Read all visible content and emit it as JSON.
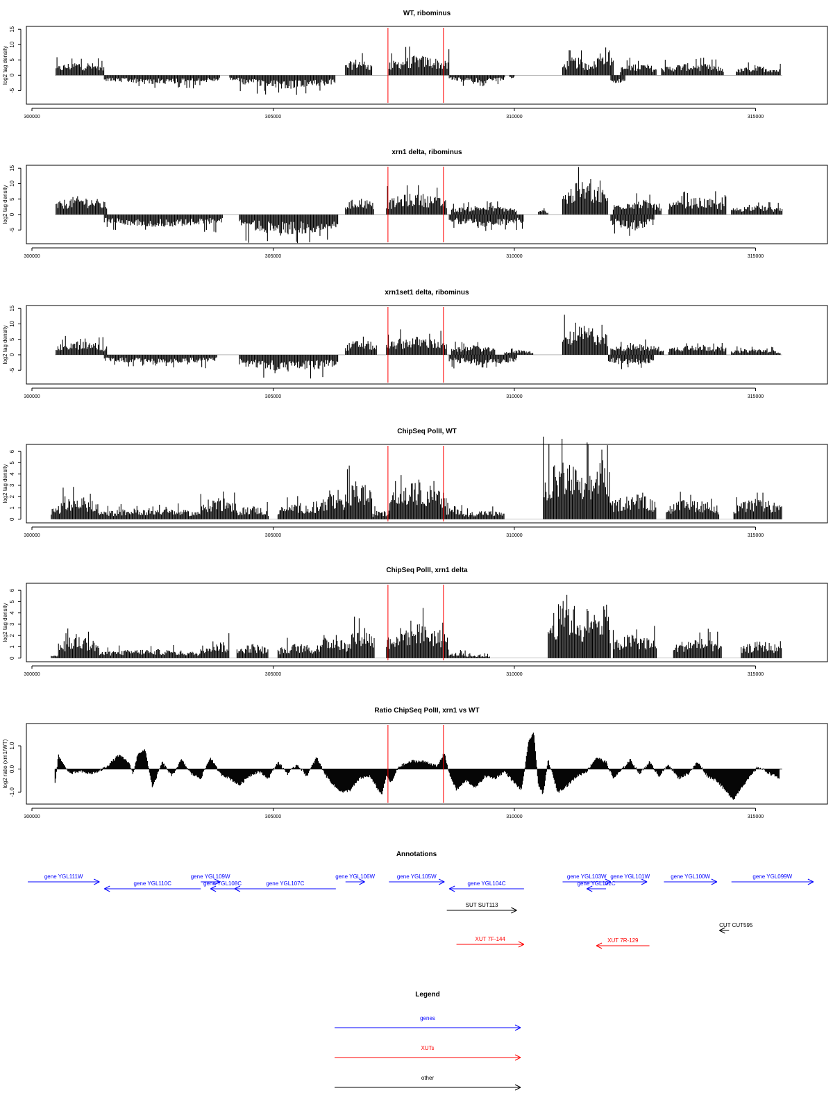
{
  "chart_data": [
    {
      "type": "bar",
      "title": "WT, ribominus",
      "ylabel": "log2 tag density",
      "ylim": [
        -9,
        15.5
      ],
      "yticks": [
        -5,
        0,
        5,
        10,
        15
      ],
      "xlim": [
        300000,
        315900
      ],
      "xticks": [
        300000,
        305000,
        310000,
        315000
      ],
      "vlines": [
        307380,
        308530
      ],
      "signal": {
        "pos": [
          [
            300500,
            301500,
            4.5
          ],
          [
            306500,
            307050,
            5.5
          ],
          [
            307400,
            308650,
            6.5
          ],
          [
            311000,
            311500,
            6
          ],
          [
            311500,
            311700,
            5.5
          ],
          [
            311700,
            312050,
            9.5
          ],
          [
            312200,
            312950,
            4
          ],
          [
            313050,
            314350,
            4
          ],
          [
            314600,
            315520,
            3
          ]
        ],
        "neg": [
          [
            301500,
            303900,
            3
          ],
          [
            304100,
            304300,
            2
          ],
          [
            304300,
            306300,
            4.5
          ],
          [
            308650,
            309800,
            2.5
          ],
          [
            309900,
            310000,
            1
          ],
          [
            312000,
            312300,
            3
          ]
        ]
      }
    },
    {
      "type": "bar",
      "title": "xrn1 delta, ribominus",
      "ylabel": "log2 tag density",
      "ylim": [
        -9,
        15.5
      ],
      "yticks": [
        -5,
        0,
        5,
        10,
        15
      ],
      "xlim": [
        300000,
        315900
      ],
      "xticks": [
        300000,
        305000,
        310000,
        315000
      ],
      "vlines": [
        307380,
        308530
      ],
      "signal": {
        "pos": [
          [
            300500,
            301550,
            6
          ],
          [
            306500,
            307100,
            5.5
          ],
          [
            307350,
            308600,
            7
          ],
          [
            308700,
            310050,
            3
          ],
          [
            310500,
            310700,
            1.5
          ],
          [
            311000,
            311950,
            11
          ],
          [
            312050,
            313050,
            5
          ],
          [
            313200,
            314400,
            5.5
          ],
          [
            314500,
            315550,
            3
          ]
        ],
        "neg": [
          [
            301500,
            303950,
            4
          ],
          [
            304300,
            306350,
            6.5
          ],
          [
            308650,
            310200,
            4
          ],
          [
            312000,
            312900,
            5
          ]
        ]
      }
    },
    {
      "type": "bar",
      "title": "xrn1set1 delta, ribominus",
      "ylabel": "log2 tag density",
      "ylim": [
        -9,
        15.5
      ],
      "yticks": [
        -5,
        0,
        5,
        10,
        15
      ],
      "xlim": [
        300000,
        315900
      ],
      "xticks": [
        300000,
        305000,
        310000,
        315000
      ],
      "vlines": [
        307380,
        308530
      ],
      "signal": {
        "pos": [
          [
            300500,
            301550,
            4.5
          ],
          [
            306500,
            307150,
            5
          ],
          [
            307350,
            308600,
            6
          ],
          [
            308700,
            309600,
            3
          ],
          [
            309800,
            310400,
            1.5
          ],
          [
            311000,
            311950,
            9.5
          ],
          [
            312000,
            313100,
            3.5
          ],
          [
            313200,
            314400,
            3.5
          ],
          [
            314500,
            315520,
            2
          ]
        ],
        "neg": [
          [
            301500,
            303850,
            3
          ],
          [
            304300,
            306350,
            5.5
          ],
          [
            308650,
            310050,
            3.5
          ],
          [
            311950,
            312900,
            3.5
          ]
        ]
      }
    },
    {
      "type": "bar",
      "title": "ChipSeq PolII, WT",
      "ylabel": "log2 tag density",
      "ylim": [
        -0.2,
        6.5
      ],
      "yticks": [
        0,
        1,
        2,
        3,
        4,
        5,
        6
      ],
      "xlim": [
        300000,
        315900
      ],
      "xticks": [
        300000,
        305000,
        310000,
        315000
      ],
      "vlines": [
        307380,
        308530
      ],
      "signal": {
        "pos": [
          [
            300400,
            300550,
            1.2
          ],
          [
            300550,
            301400,
            2
          ],
          [
            301400,
            303500,
            1
          ],
          [
            303500,
            304200,
            2
          ],
          [
            304200,
            304900,
            1.2
          ],
          [
            305100,
            305900,
            1.5
          ],
          [
            305900,
            306500,
            2.2
          ],
          [
            306500,
            307050,
            3.5
          ],
          [
            307050,
            307400,
            0.8
          ],
          [
            307400,
            308600,
            3.3
          ],
          [
            308600,
            308950,
            1.2
          ],
          [
            308950,
            309800,
            0.8
          ],
          [
            310600,
            311450,
            5.3
          ],
          [
            311450,
            311600,
            4.8
          ],
          [
            311600,
            312000,
            5.8
          ],
          [
            312000,
            312950,
            2.3
          ],
          [
            313150,
            314250,
            1.8
          ],
          [
            314550,
            315550,
            1.8
          ]
        ],
        "neg": []
      }
    },
    {
      "type": "bar",
      "title": "ChipSeq PolII, xrn1 delta",
      "ylabel": "log2 tag density",
      "ylim": [
        -0.2,
        6.5
      ],
      "yticks": [
        0,
        1,
        2,
        3,
        4,
        5,
        6
      ],
      "xlim": [
        300000,
        315900
      ],
      "xticks": [
        300000,
        305000,
        310000,
        315000
      ],
      "vlines": [
        307380,
        308530
      ],
      "signal": {
        "pos": [
          [
            300400,
            300550,
            0.3
          ],
          [
            300550,
            301400,
            2
          ],
          [
            301400,
            303500,
            0.8
          ],
          [
            303500,
            304100,
            1.6
          ],
          [
            304250,
            304900,
            1.3
          ],
          [
            305100,
            305900,
            1.3
          ],
          [
            305900,
            306550,
            2
          ],
          [
            306550,
            307100,
            3
          ],
          [
            307350,
            308650,
            3.1
          ],
          [
            308650,
            309000,
            0.5
          ],
          [
            309000,
            309500,
            0.3
          ],
          [
            310700,
            311450,
            5.2
          ],
          [
            311450,
            311600,
            4.6
          ],
          [
            311600,
            312000,
            5.4
          ],
          [
            312050,
            312950,
            2.2
          ],
          [
            313300,
            314300,
            1.8
          ],
          [
            314700,
            315550,
            1.5
          ]
        ],
        "neg": []
      }
    },
    {
      "type": "area",
      "title": "Ratio ChipSeq PolII, xrn1 vs WT",
      "ylabel": "log2 ratio (xrn1/WT)",
      "ylim": [
        -1.45,
        1.9
      ],
      "yticks": [
        -1.0,
        0.0,
        1.0
      ],
      "xlim": [
        300000,
        315900
      ],
      "xticks": [
        300000,
        305000,
        310000,
        315000
      ],
      "vlines": [
        307380,
        308530
      ],
      "points": [
        [
          300480,
          -0.6
        ],
        [
          300550,
          0.6
        ],
        [
          300650,
          0.2
        ],
        [
          300800,
          -0.2
        ],
        [
          301000,
          -0.1
        ],
        [
          301200,
          -0.2
        ],
        [
          301400,
          -0.1
        ],
        [
          301600,
          0.2
        ],
        [
          301800,
          0.6
        ],
        [
          302000,
          0.3
        ],
        [
          302100,
          -0.2
        ],
        [
          302200,
          0.7
        ],
        [
          302350,
          0.8
        ],
        [
          302500,
          -0.8
        ],
        [
          302700,
          0.3
        ],
        [
          302900,
          -0.3
        ],
        [
          303100,
          0.4
        ],
        [
          303300,
          -0.2
        ],
        [
          303500,
          -0.4
        ],
        [
          303700,
          0.5
        ],
        [
          303900,
          -0.2
        ],
        [
          304100,
          -0.4
        ],
        [
          304300,
          -0.7
        ],
        [
          304500,
          -0.3
        ],
        [
          304700,
          -0.1
        ],
        [
          304900,
          -0.4
        ],
        [
          305100,
          0.3
        ],
        [
          305300,
          -0.2
        ],
        [
          305500,
          0.2
        ],
        [
          305700,
          -0.3
        ],
        [
          305900,
          0.5
        ],
        [
          306100,
          -0.3
        ],
        [
          306300,
          -0.8
        ],
        [
          306450,
          -1.0
        ],
        [
          306600,
          -0.9
        ],
        [
          306800,
          -0.4
        ],
        [
          307000,
          -0.3
        ],
        [
          307150,
          -0.8
        ],
        [
          307250,
          -1.1
        ],
        [
          307350,
          -0.3
        ],
        [
          307450,
          -0.6
        ],
        [
          307600,
          0.1
        ],
        [
          307900,
          0.35
        ],
        [
          308200,
          0.3
        ],
        [
          308400,
          0.1
        ],
        [
          308550,
          0.7
        ],
        [
          308650,
          -0.2
        ],
        [
          308800,
          -0.9
        ],
        [
          309000,
          -0.5
        ],
        [
          309200,
          -0.8
        ],
        [
          309400,
          -0.3
        ],
        [
          309600,
          -0.4
        ],
        [
          309800,
          -0.1
        ],
        [
          310000,
          -0.6
        ],
        [
          310150,
          -0.9
        ],
        [
          310300,
          1.2
        ],
        [
          310400,
          1.6
        ],
        [
          310500,
          -0.7
        ],
        [
          310600,
          -1.1
        ],
        [
          310700,
          0.4
        ],
        [
          310900,
          -1.0
        ],
        [
          311100,
          -0.7
        ],
        [
          311300,
          -0.3
        ],
        [
          311500,
          -0.1
        ],
        [
          311700,
          0.5
        ],
        [
          311900,
          0.3
        ],
        [
          312050,
          -0.4
        ],
        [
          312200,
          -0.1
        ],
        [
          312400,
          0.4
        ],
        [
          312600,
          -0.2
        ],
        [
          312800,
          0.3
        ],
        [
          313000,
          -0.3
        ],
        [
          313200,
          0.2
        ],
        [
          313400,
          -0.4
        ],
        [
          313600,
          -0.2
        ],
        [
          313800,
          0.3
        ],
        [
          314000,
          -0.3
        ],
        [
          314200,
          -0.5
        ],
        [
          314400,
          -1.0
        ],
        [
          314550,
          -1.3
        ],
        [
          314700,
          -0.8
        ],
        [
          314900,
          -0.3
        ],
        [
          315050,
          0.1
        ],
        [
          315300,
          -0.2
        ],
        [
          315500,
          -0.4
        ]
      ]
    }
  ],
  "annotations": {
    "title": "Annotations",
    "items": [
      {
        "label": "gene YGL111W",
        "color": "#0000ff",
        "dir": "right",
        "x1": 299900,
        "x2": 301400,
        "row": 0
      },
      {
        "label": "gene YGL110C",
        "color": "#0000ff",
        "dir": "left",
        "x1": 301500,
        "x2": 303500,
        "row": 1
      },
      {
        "label": "gene YGL109W",
        "color": "#0000ff",
        "dir": "right",
        "x1": 303500,
        "x2": 303900,
        "row": 0
      },
      {
        "label": "gene YGL108C",
        "color": "#0000ff",
        "dir": "left",
        "x1": 303700,
        "x2": 304200,
        "row": 1
      },
      {
        "label": "gene YGL107C",
        "color": "#0000ff",
        "dir": "left",
        "x1": 304200,
        "x2": 306300,
        "row": 1
      },
      {
        "label": "gene YGL106W",
        "color": "#0000ff",
        "dir": "right",
        "x1": 306500,
        "x2": 306900,
        "row": 0
      },
      {
        "label": "gene YGL105W",
        "color": "#0000ff",
        "dir": "right",
        "x1": 307400,
        "x2": 308550,
        "row": 0
      },
      {
        "label": "gene YGL104C",
        "color": "#0000ff",
        "dir": "left",
        "x1": 308650,
        "x2": 310200,
        "row": 1
      },
      {
        "label": "gene YGL103W",
        "color": "#0000ff",
        "dir": "right",
        "x1": 311000,
        "x2": 312000,
        "row": 0
      },
      {
        "label": "gene YGL102C",
        "color": "#0000ff",
        "dir": "left",
        "x1": 311500,
        "x2": 311900,
        "row": 1
      },
      {
        "label": "gene YGL101W",
        "color": "#0000ff",
        "dir": "right",
        "x1": 312050,
        "x2": 312750,
        "row": 0
      },
      {
        "label": "gene YGL100W",
        "color": "#0000ff",
        "dir": "right",
        "x1": 313100,
        "x2": 314200,
        "row": 0
      },
      {
        "label": "gene YGL099W",
        "color": "#0000ff",
        "dir": "right",
        "x1": 314500,
        "x2": 316200,
        "row": 0
      },
      {
        "label": "SUT SUT113",
        "color": "#000000",
        "dir": "right",
        "x1": 308600,
        "x2": 310050,
        "row": 2
      },
      {
        "label": "CUT CUT595",
        "color": "#000000",
        "dir": "left",
        "x1": 314250,
        "x2": 314450,
        "row": 3
      },
      {
        "label": "XUT 7F-144",
        "color": "#ff0000",
        "dir": "right",
        "x1": 308800,
        "x2": 310200,
        "row": 4
      },
      {
        "label": "XUT 7R-129",
        "color": "#ff0000",
        "dir": "left",
        "x1": 311700,
        "x2": 312800,
        "row": 5
      }
    ]
  },
  "legend": {
    "title": "Legend",
    "items": [
      {
        "label": "genes",
        "color": "#0000ff"
      },
      {
        "label": "XUTs",
        "color": "#ff0000"
      },
      {
        "label": "other",
        "color": "#000000"
      }
    ]
  },
  "colors": {
    "vline": "#ff0000",
    "bars": "#000000",
    "axis": "#000000"
  }
}
